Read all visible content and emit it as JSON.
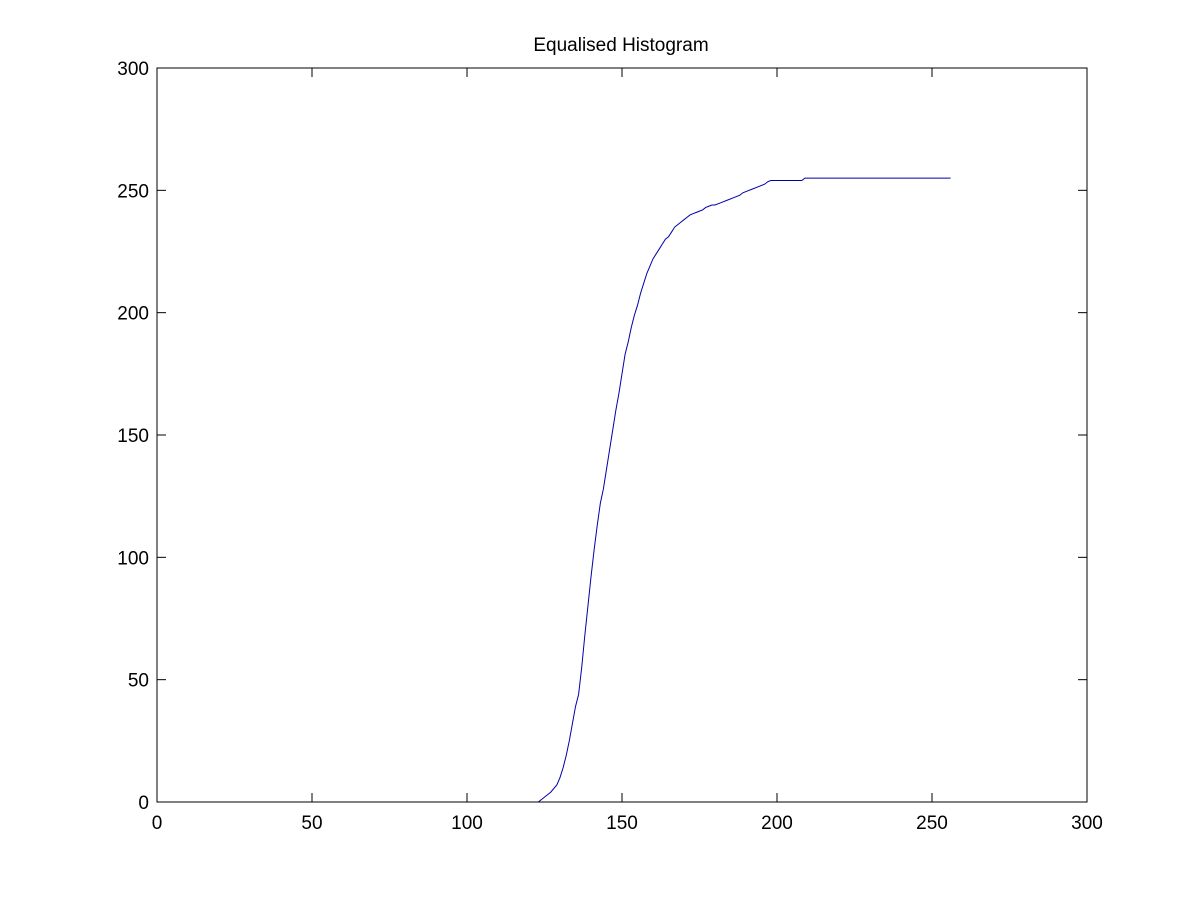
{
  "chart_data": {
    "type": "line",
    "title": "Equalised Histogram",
    "xlabel": "",
    "ylabel": "",
    "xlim": [
      0,
      300
    ],
    "ylim": [
      0,
      300
    ],
    "x_ticks": [
      0,
      50,
      100,
      150,
      200,
      250,
      300
    ],
    "y_ticks": [
      0,
      50,
      100,
      150,
      200,
      250,
      300
    ],
    "grid": false,
    "legend": "none",
    "colors": {
      "line": "#0000aa",
      "axes": "#000000",
      "background": "#ffffff"
    },
    "series": [
      {
        "x": [
          123,
          125,
          127,
          129,
          130,
          131,
          132,
          133,
          134,
          135,
          136,
          137,
          138,
          139,
          140,
          141,
          142,
          143,
          144,
          145,
          146,
          147,
          148,
          149,
          150,
          151,
          152,
          153,
          154,
          155,
          156,
          157,
          158,
          159,
          160,
          161,
          162,
          163,
          164,
          165,
          166,
          167,
          168,
          169,
          170,
          171,
          172,
          173,
          174,
          175,
          176,
          177,
          178,
          179,
          180,
          182,
          184,
          186,
          188,
          189,
          190,
          192,
          194,
          196,
          197,
          198,
          200,
          205,
          208,
          209,
          215,
          230,
          245,
          256
        ],
        "y": [
          0,
          2,
          4,
          7,
          10,
          14,
          19,
          25,
          32,
          39,
          44,
          55,
          68,
          80,
          92,
          103,
          113,
          122,
          128,
          136,
          144,
          152,
          160,
          167,
          175,
          183,
          188,
          194,
          199,
          203,
          208,
          212,
          216,
          219,
          222,
          224,
          226,
          228,
          230,
          231,
          233,
          235,
          236,
          237,
          238,
          239,
          240,
          240.5,
          241,
          241.5,
          242,
          243,
          243.5,
          244,
          244,
          245,
          246,
          247,
          248,
          249,
          249.5,
          250.5,
          251.5,
          252.5,
          253.5,
          254,
          254,
          254,
          254,
          255,
          255,
          255,
          255,
          255
        ]
      }
    ]
  }
}
